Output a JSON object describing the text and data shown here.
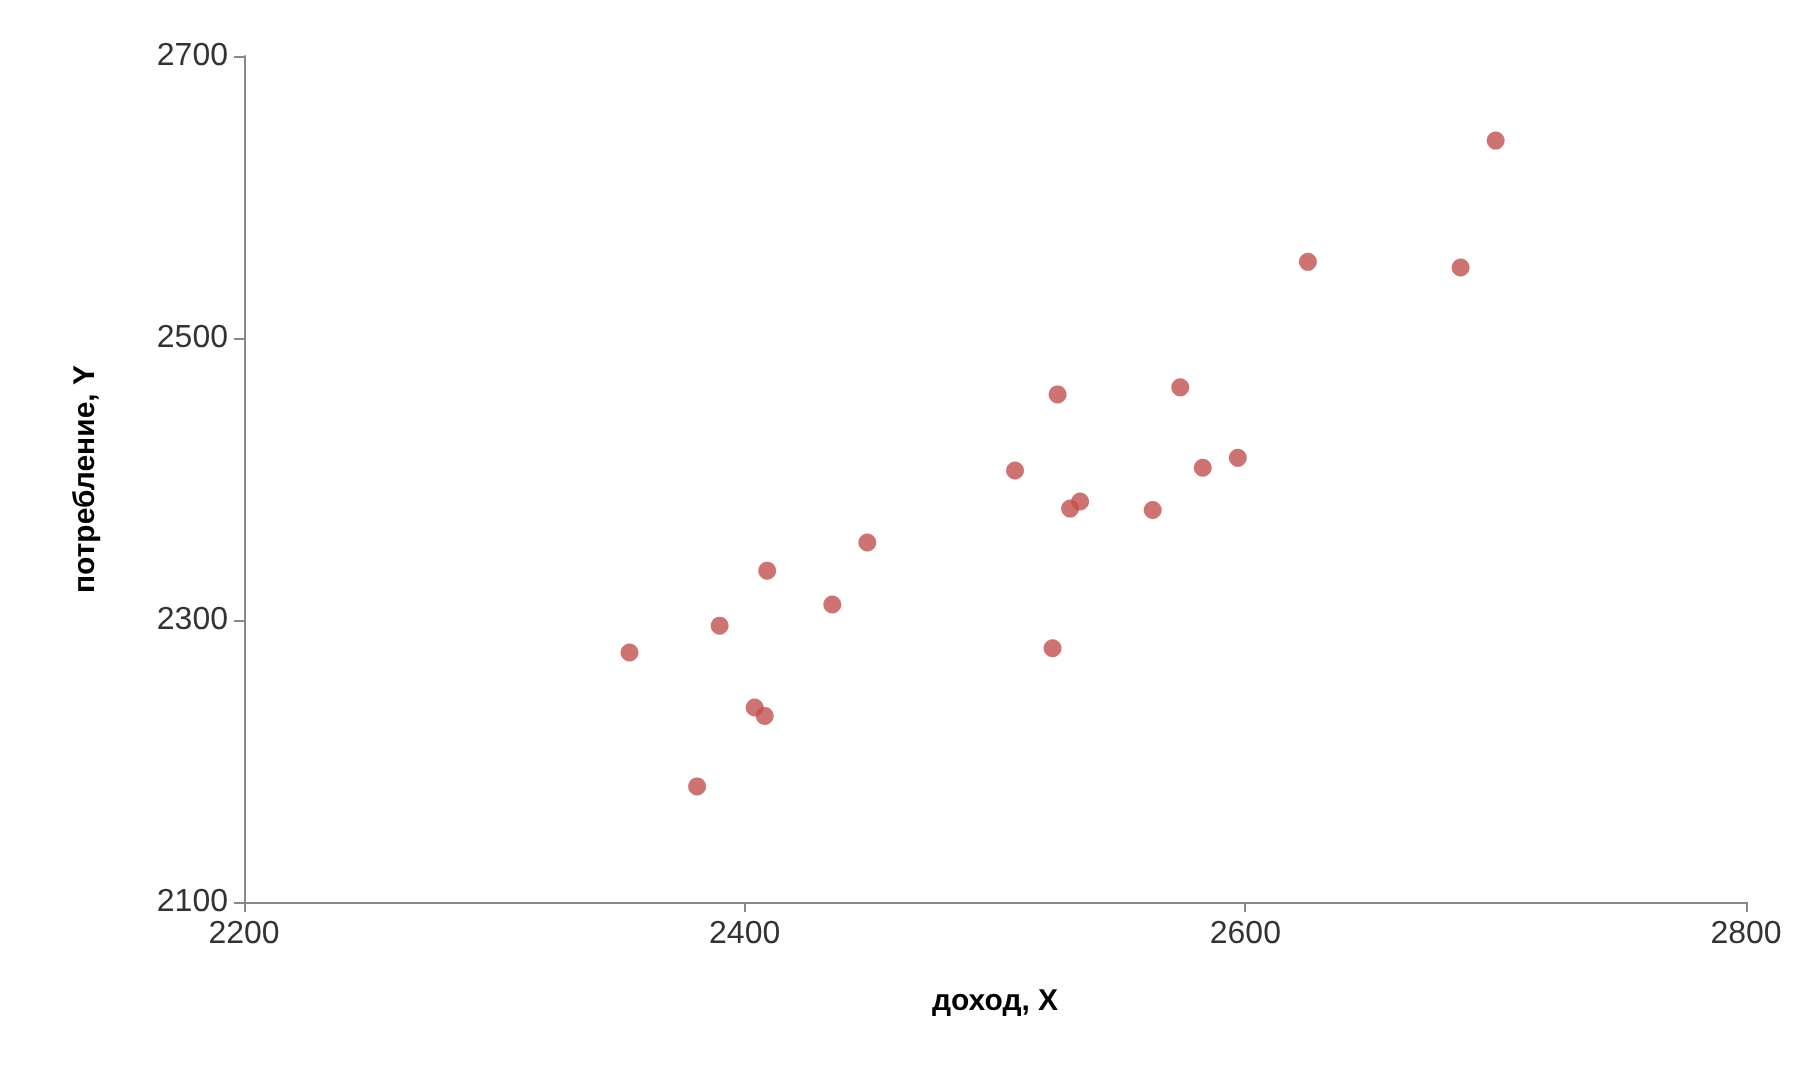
{
  "chart_data": {
    "type": "scatter",
    "xlabel": "доход, X",
    "ylabel": "потребление, Y",
    "x": [
      2354,
      2381,
      2390,
      2404,
      2408,
      2409,
      2435,
      2449,
      2508,
      2523,
      2525,
      2530,
      2534,
      2563,
      2574,
      2583,
      2597,
      2625,
      2686,
      2700
    ],
    "series": [
      {
        "color": "#c0504d",
        "values": [
          2277,
          2182,
          2296,
          2238,
          2232,
          2335,
          2311,
          2355,
          2406,
          2280,
          2460,
          2379,
          2384,
          2378,
          2465,
          2408,
          2415,
          2554,
          2550,
          2640
        ]
      }
    ],
    "xlim": [
      2200,
      2800
    ],
    "xticks": [
      2200,
      2400,
      2600,
      2800
    ],
    "ylim": [
      2100,
      2700
    ],
    "yticks": [
      2100,
      2300,
      2500,
      2700
    ],
    "grid": false,
    "marker": "circle"
  }
}
